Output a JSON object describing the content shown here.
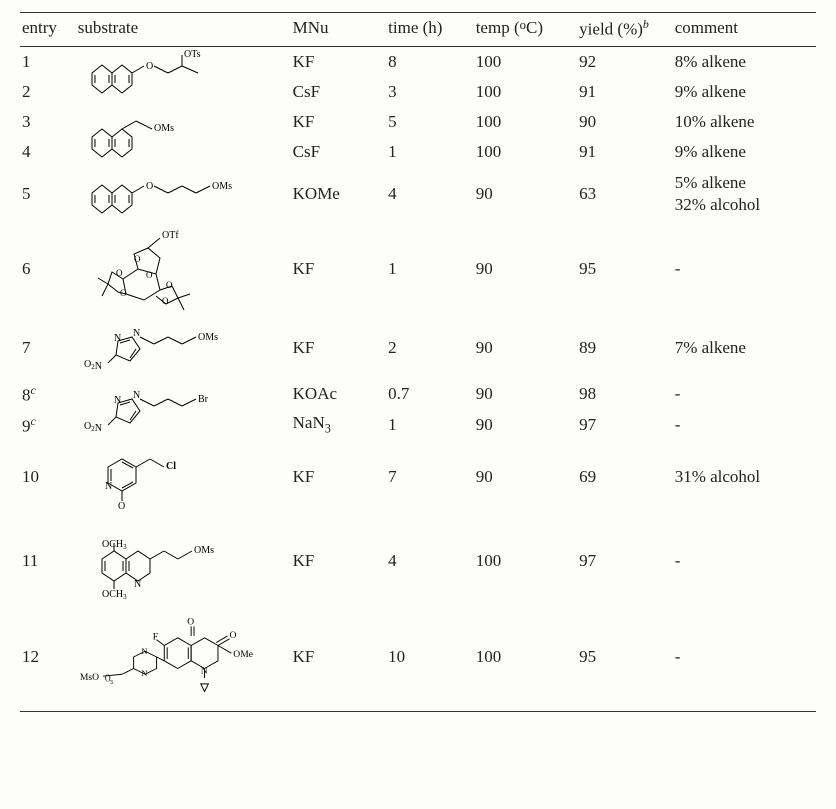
{
  "columns": {
    "entry": "entry",
    "substrate": "substrate",
    "mnu": "MNu",
    "time": "time (h)",
    "temp_html": "temp (<span style='font-size:0.75em;vertical-align:top;'>o</span>C)",
    "yield_html": "yield (%)<span class='sup'>b</span>",
    "comment": "comment"
  },
  "rows": [
    {
      "entry": "1",
      "mnu": "KF",
      "time": "8",
      "temp": "100",
      "yield": "92",
      "comment": "8% alkene",
      "struct": "A",
      "rowspan": 2
    },
    {
      "entry": "2",
      "mnu": "CsF",
      "time": "3",
      "temp": "100",
      "yield": "91",
      "comment": "9% alkene"
    },
    {
      "entry": "3",
      "mnu": "KF",
      "time": "5",
      "temp": "100",
      "yield": "90",
      "comment": "10% alkene",
      "struct": "B",
      "rowspan": 2
    },
    {
      "entry": "4",
      "mnu": "CsF",
      "time": "1",
      "temp": "100",
      "yield": "91",
      "comment": "9% alkene"
    },
    {
      "entry": "5",
      "mnu": "KOMe",
      "time": "4",
      "temp": "90",
      "yield": "63",
      "comment": "5% alkene\n32% alcohol",
      "struct": "C",
      "rowspan": 1
    },
    {
      "entry": "6",
      "mnu": "KF",
      "time": "1",
      "temp": "90",
      "yield": "95",
      "comment": "-",
      "struct": "D",
      "rowspan": 1,
      "tall": true
    },
    {
      "entry": "7",
      "mnu": "KF",
      "time": "2",
      "temp": "90",
      "yield": "89",
      "comment": "7% alkene",
      "struct": "E",
      "rowspan": 1
    },
    {
      "entry": "8",
      "entry_sup": "c",
      "mnu": "KOAc",
      "time": "0.7",
      "temp": "90",
      "yield": "98",
      "comment": "-",
      "struct": "F",
      "rowspan": 2
    },
    {
      "entry": "9",
      "entry_sup": "c",
      "mnu_html": "NaN<span class='sub2'>3</span>",
      "time": "1",
      "temp": "90",
      "yield": "97",
      "comment": "-"
    },
    {
      "entry": "10",
      "mnu": "KF",
      "time": "7",
      "temp": "90",
      "yield": "69",
      "comment": "31% alcohol",
      "struct": "G",
      "rowspan": 1
    },
    {
      "entry": "11",
      "mnu": "KF",
      "time": "4",
      "temp": "100",
      "yield": "97",
      "comment": "-",
      "struct": "H",
      "rowspan": 1,
      "tall": true
    },
    {
      "entry": "12",
      "mnu": "KF",
      "time": "10",
      "temp": "100",
      "yield": "95",
      "comment": "-",
      "struct": "I",
      "rowspan": 1,
      "tall": true
    }
  ],
  "structure_labels": {
    "A": {
      "OTs": "OTs"
    },
    "B": {
      "OMs": "OMs"
    },
    "C": {
      "OMs": "OMs"
    },
    "D": {
      "OTf": "OTf"
    },
    "E": {
      "OMs": "OMs",
      "O2N": "O2N"
    },
    "F": {
      "Br": "Br",
      "O2N": "O2N"
    },
    "G": {
      "Cl": "Cl"
    },
    "H": {
      "OMs": "OMs",
      "OCH3": "OCH3"
    },
    "I": {
      "OMe": "OMe",
      "MsO": "MsO",
      "F": "F"
    }
  },
  "style": {
    "stroke": "#000000",
    "stroke_width": 1.0,
    "label_font_size": 10,
    "double_bond_gap": 2.2
  }
}
